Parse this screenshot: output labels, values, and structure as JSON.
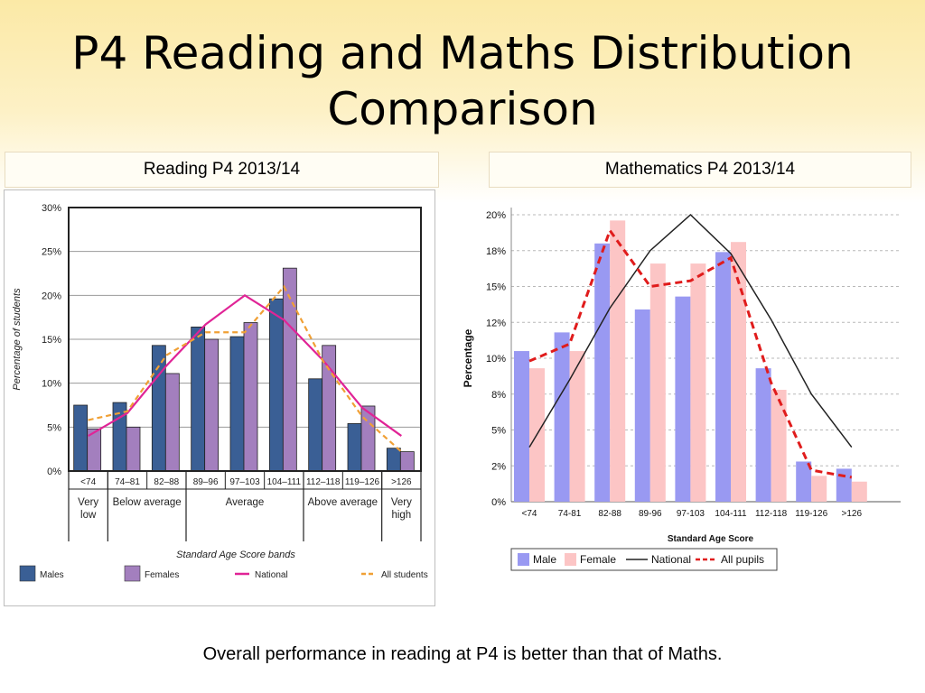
{
  "slide": {
    "title": "P4 Reading and Maths Distribution Comparison",
    "footer": "Overall performance in reading at P4 is better than that of Maths."
  },
  "chart_data": [
    {
      "type": "bar",
      "panel_title": "Reading P4 2013/14",
      "categories": [
        "<74",
        "74–81",
        "82–88",
        "89–96",
        "97–103",
        "104–111",
        "112–118",
        "119–126",
        ">126"
      ],
      "band_groups": [
        {
          "label": [
            "Very",
            "low"
          ],
          "from": 0,
          "to": 0
        },
        {
          "label": [
            "Below average"
          ],
          "from": 1,
          "to": 2
        },
        {
          "label": [
            "Average"
          ],
          "from": 3,
          "to": 5
        },
        {
          "label": [
            "Above average"
          ],
          "from": 6,
          "to": 7
        },
        {
          "label": [
            "Very",
            "high"
          ],
          "from": 8,
          "to": 8
        }
      ],
      "bar_series": [
        {
          "name": "Males",
          "color": "#3a5f95",
          "values": [
            7.5,
            7.8,
            14.3,
            16.4,
            15.3,
            19.6,
            10.5,
            5.4,
            2.6
          ]
        },
        {
          "name": "Females",
          "color": "#a37fbe",
          "values": [
            4.8,
            5.0,
            11.1,
            15.0,
            16.9,
            23.1,
            14.3,
            7.4,
            2.2
          ]
        }
      ],
      "line_series": [
        {
          "name": "National",
          "color": "#e02496",
          "dash": false,
          "values": [
            4.0,
            6.6,
            12.0,
            16.7,
            20.0,
            17.2,
            12.6,
            7.2,
            4.0
          ]
        },
        {
          "name": "All students",
          "color": "#f0a035",
          "dash": true,
          "values": [
            5.8,
            6.8,
            13.2,
            15.8,
            15.8,
            21.0,
            12.5,
            6.2,
            2.2
          ]
        }
      ],
      "xlabel": "Standard Age Score bands",
      "ylabel": "Percentage of students",
      "ylim": [
        0,
        30
      ],
      "yticks": [
        "0%",
        "5%",
        "10%",
        "15%",
        "20%",
        "25%",
        "30%"
      ],
      "grid": true,
      "legend_position": "bottom"
    },
    {
      "type": "bar",
      "panel_title": "Mathematics P4 2013/14",
      "categories": [
        "<74",
        "74-81",
        "82-88",
        "89-96",
        "97-103",
        "104-111",
        "112-118",
        "119-126",
        ">126"
      ],
      "bar_series": [
        {
          "name": "Male",
          "color": "#9999f2",
          "values": [
            10.5,
            11.8,
            18.0,
            13.4,
            14.3,
            17.4,
            9.3,
            2.8,
            2.3
          ]
        },
        {
          "name": "Female",
          "color": "#fcc5c5",
          "values": [
            9.3,
            10.5,
            19.6,
            16.6,
            16.6,
            18.1,
            7.8,
            1.8,
            1.4
          ]
        }
      ],
      "line_series": [
        {
          "name": "National",
          "color": "#222222",
          "dash": false,
          "values": [
            3.8,
            8.5,
            13.5,
            17.5,
            20.0,
            17.3,
            12.7,
            7.5,
            3.8
          ]
        },
        {
          "name": "All pupils",
          "color": "#e01c1c",
          "dash": true,
          "values": [
            9.8,
            11.0,
            18.9,
            15.0,
            15.4,
            17.0,
            8.3,
            2.2,
            1.7
          ]
        }
      ],
      "xlabel": "Standard Age Score",
      "ylabel": "Percentage",
      "ylim": [
        0,
        20
      ],
      "yticks": [
        "0%",
        "2%",
        "5%",
        "8%",
        "10%",
        "12%",
        "15%",
        "18%",
        "20%"
      ],
      "grid": true,
      "legend_position": "bottom"
    }
  ]
}
